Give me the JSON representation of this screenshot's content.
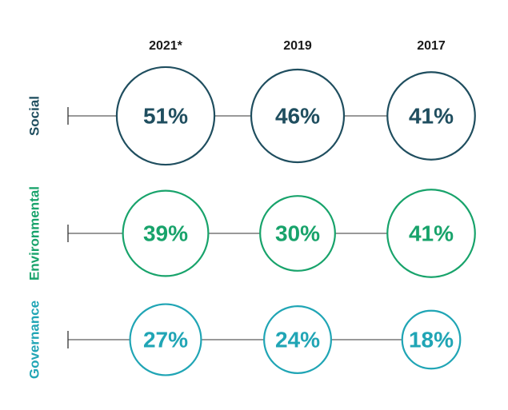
{
  "chart_data": {
    "type": "bubble-matrix",
    "title": "",
    "columns": [
      "2021*",
      "2019",
      "2017"
    ],
    "rows": [
      {
        "name": "Social",
        "color": "#1f4e5f",
        "values": [
          51,
          46,
          41
        ],
        "labels": [
          "51%",
          "46%",
          "41%"
        ]
      },
      {
        "name": "Environmental",
        "color": "#18a36b",
        "values": [
          39,
          30,
          41
        ],
        "labels": [
          "39%",
          "30%",
          "41%"
        ]
      },
      {
        "name": "Governance",
        "color": "#20a5b5",
        "values": [
          27,
          24,
          18
        ],
        "labels": [
          "27%",
          "24%",
          "18%"
        ]
      }
    ],
    "unit": "%"
  }
}
